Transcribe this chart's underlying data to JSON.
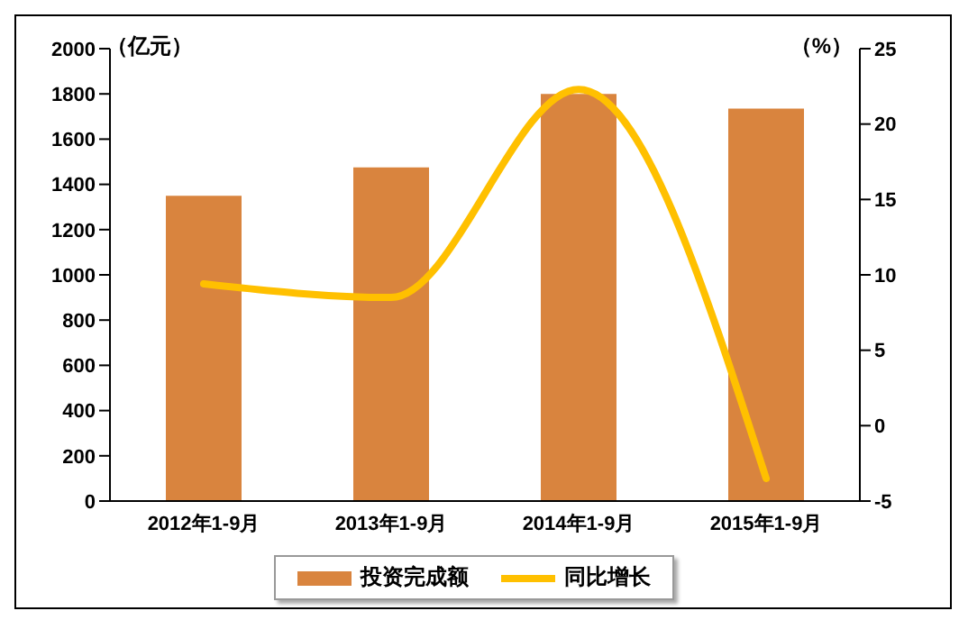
{
  "chart_data": {
    "type": "bar",
    "ylabel": "（亿元）",
    "y2label": "（%）",
    "categories": [
      "2012年1-9月",
      "2013年1-9月",
      "2014年1-9月",
      "2015年1-9月"
    ],
    "series": [
      {
        "name": "投资完成额",
        "color": "#d9843e",
        "values": [
          1350,
          1475,
          1800,
          1735
        ]
      },
      {
        "name": "同比增长",
        "type": "line",
        "axis": "y2",
        "color": "#ffc000",
        "values": [
          9.4,
          8.5,
          22.3,
          -3.5
        ]
      }
    ],
    "ylim": [
      0,
      2000
    ],
    "yticks": [
      0,
      200,
      400,
      600,
      800,
      1000,
      1200,
      1400,
      1600,
      1800,
      2000
    ],
    "y2lim": [
      -5,
      25
    ],
    "y2ticks": [
      -5,
      0,
      5,
      10,
      15,
      20,
      25
    ],
    "grid": false,
    "legend": "bottom",
    "marker": "none",
    "line_style": "solid"
  }
}
